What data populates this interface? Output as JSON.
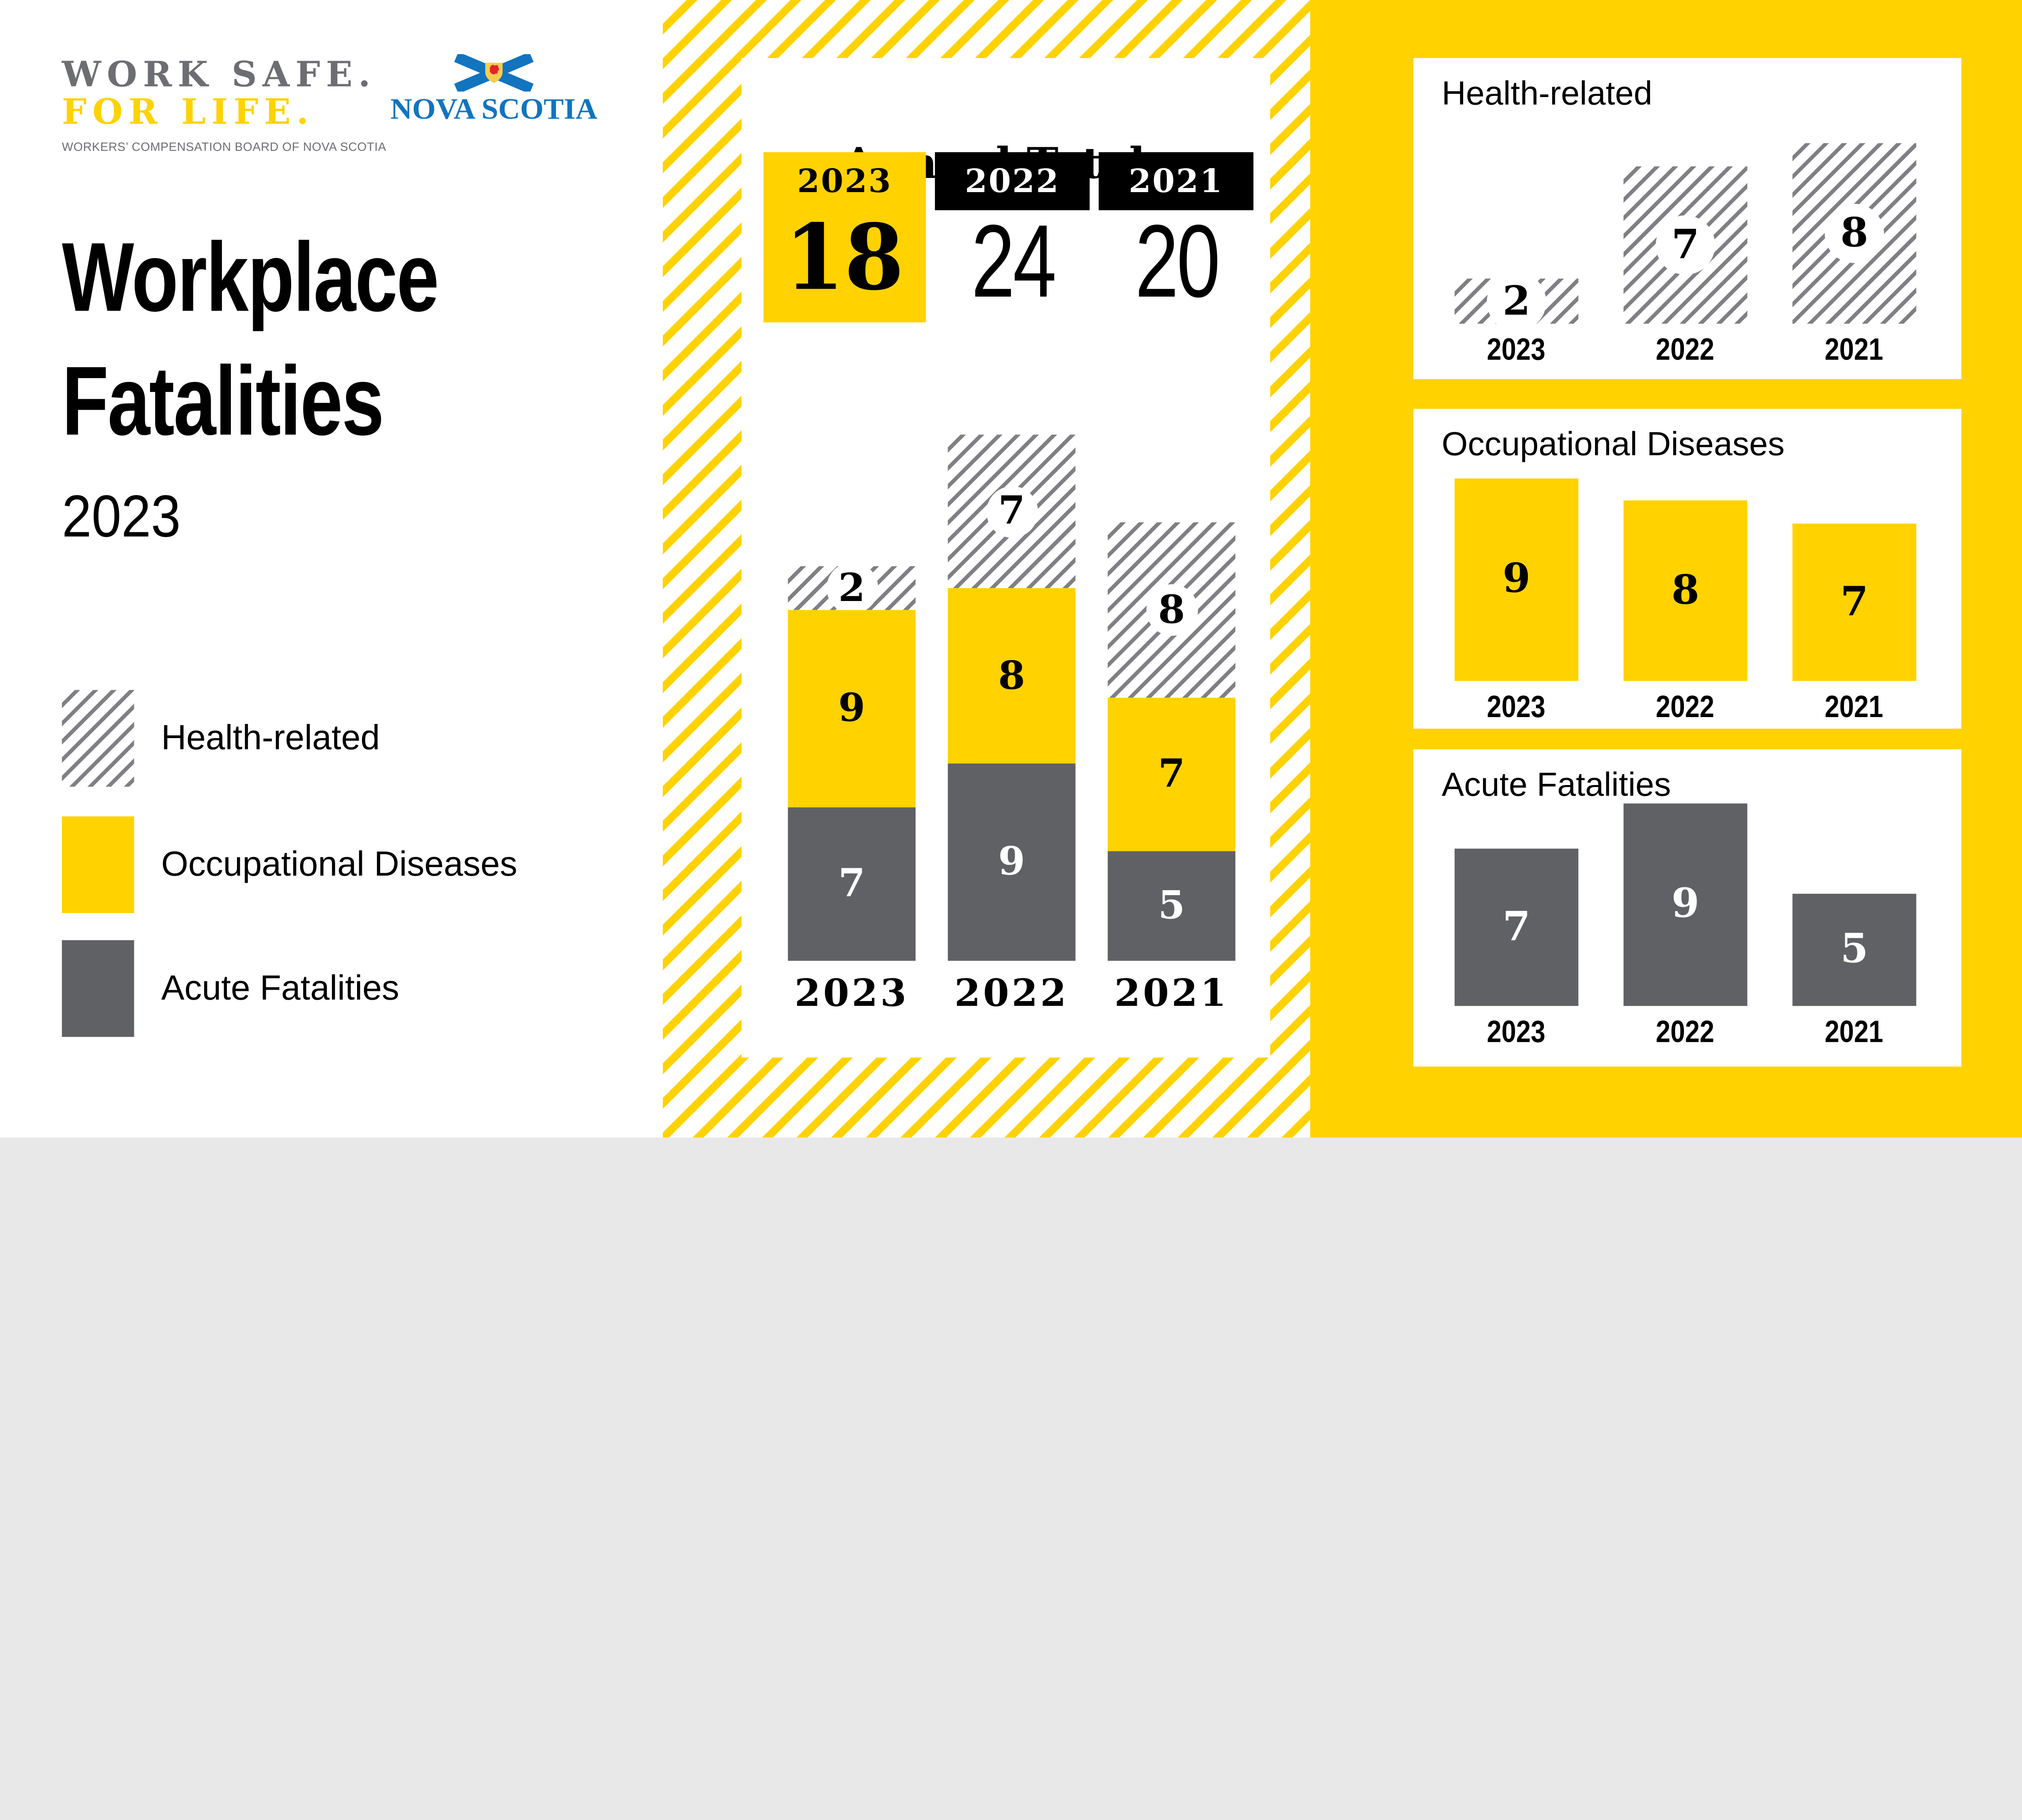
{
  "brand": {
    "wcb": {
      "line1": "WORK SAFE.",
      "line2": "FOR LIFE.",
      "tagline": "WORKERS’ COMPENSATION BOARD OF NOVA SCOTIA",
      "line1_color": "#6D6E71",
      "line2_color": "#FFD200"
    },
    "nova_scotia": {
      "wordmark": "NOVA SCOTIA",
      "icon": "nova-scotia-flag-icon",
      "blue": "#1274BE",
      "shield_gold": "#F5CE4E",
      "lion_red": "#E3242B"
    }
  },
  "title": {
    "line1": "Workplace",
    "line2": "Fatalities",
    "year": "2023"
  },
  "legend": [
    {
      "label": "Health-related",
      "swatch": "hatched"
    },
    {
      "label": "Occupational Diseases",
      "swatch": "yellow"
    },
    {
      "label": "Acute Fatalities",
      "swatch": "gray"
    }
  ],
  "colors": {
    "yellow": "#FFD200",
    "bar_gray": "#5F6164",
    "hatch_line_gray": "#7E8083",
    "black": "#000000",
    "white": "#FFFFFF"
  },
  "chart_data": [
    {
      "name": "annual_totals",
      "type": "bar",
      "subtype": "stacked",
      "title": "Annual Totals",
      "categories": [
        "2023",
        "2022",
        "2021"
      ],
      "totals": [
        18,
        24,
        20
      ],
      "featured_category": "2023",
      "series": [
        {
          "name": "Acute Fatalities",
          "style": "gray",
          "values": [
            7,
            9,
            5
          ]
        },
        {
          "name": "Occupational Diseases",
          "style": "yellow",
          "values": [
            9,
            8,
            7
          ]
        },
        {
          "name": "Health-related",
          "style": "hatched",
          "values": [
            2,
            7,
            8
          ]
        }
      ],
      "legend_position": "left-panel",
      "grid": false
    },
    {
      "name": "health_related",
      "type": "bar",
      "title": "Health-related",
      "categories": [
        "2023",
        "2022",
        "2021"
      ],
      "values": [
        2,
        7,
        8
      ],
      "style": "hatched",
      "grid": false
    },
    {
      "name": "occupational_diseases",
      "type": "bar",
      "title": "Occupational Diseases",
      "categories": [
        "2023",
        "2022",
        "2021"
      ],
      "values": [
        9,
        8,
        7
      ],
      "style": "yellow",
      "grid": false
    },
    {
      "name": "acute_fatalities",
      "type": "bar",
      "title": "Acute Fatalities",
      "categories": [
        "2023",
        "2022",
        "2021"
      ],
      "values": [
        7,
        9,
        5
      ],
      "style": "gray",
      "grid": false
    }
  ]
}
